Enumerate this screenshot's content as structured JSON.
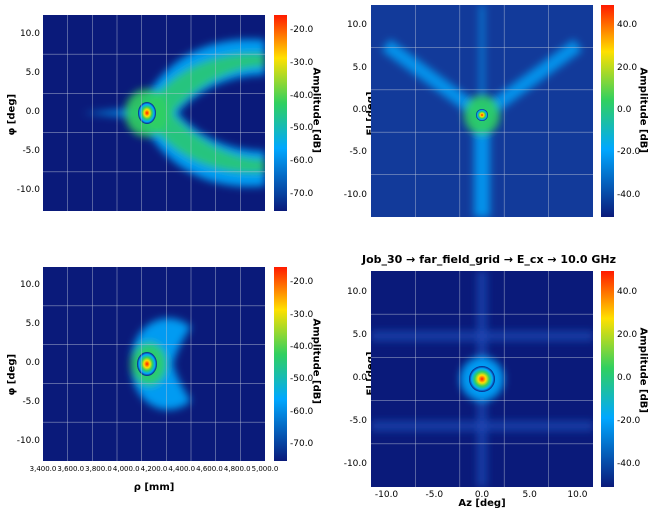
{
  "title_br": "Job_30 → far_field_grid → E_cx → 10.0 GHz",
  "colors": {
    "low": "#0a1a7a",
    "mid_low": "#00a8ff",
    "mid": "#30d060",
    "mid_high": "#ffe000",
    "high": "#ff1a00",
    "grid": "#c0c8d8"
  },
  "chart_data": [
    {
      "type": "heatmap",
      "id": "tl",
      "ylabel": "φ [deg]",
      "xlabel": "",
      "yticks": [
        "10.0",
        "5.0",
        "0.0",
        "-5.0",
        "-10.0"
      ],
      "xticks": [],
      "colorbar": {
        "label": "Amplitude [dB]",
        "ticks": [
          "-20.0",
          "-30.0",
          "-40.0",
          "-50.0",
          "-60.0",
          "-70.0"
        ]
      },
      "pattern": "sidelobe-wedge"
    },
    {
      "type": "heatmap",
      "id": "tr",
      "ylabel": "El [deg]",
      "xlabel": "",
      "yticks": [
        "10.0",
        "5.0",
        "0.0",
        "-5.0",
        "-10.0"
      ],
      "xticks": [],
      "colorbar": {
        "label": "Amplitude [dB]",
        "ticks": [
          "40.0",
          "20.0",
          "0.0",
          "-20.0",
          "-40.0"
        ]
      },
      "pattern": "y-beams"
    },
    {
      "type": "heatmap",
      "id": "bl",
      "ylabel": "φ [deg]",
      "xlabel": "ρ [mm]",
      "yticks": [
        "10.0",
        "5.0",
        "0.0",
        "-5.0",
        "-10.0"
      ],
      "xticks": [
        "3,400.0",
        "3,600.0",
        "3,800.0",
        "4,000.0",
        "4,200.0",
        "4,400.0",
        "4,600.0",
        "4,800.0",
        "5,000.0"
      ],
      "colorbar": {
        "label": "Amplitude [dB]",
        "ticks": [
          "-20.0",
          "-30.0",
          "-40.0",
          "-50.0",
          "-60.0",
          "-70.0"
        ]
      },
      "pattern": "compact-lobe"
    },
    {
      "type": "heatmap",
      "id": "br",
      "ylabel": "El [deg]",
      "xlabel": "Az [deg]",
      "yticks": [
        "10.0",
        "5.0",
        "0.0",
        "-5.0",
        "-10.0"
      ],
      "xticks": [
        "-10.0",
        "-5.0",
        "0.0",
        "5.0",
        "10.0"
      ],
      "colorbar": {
        "label": "Amplitude [dB]",
        "ticks": [
          "40.0",
          "20.0",
          "0.0",
          "-20.0",
          "-40.0"
        ]
      },
      "pattern": "focused-spot"
    }
  ]
}
